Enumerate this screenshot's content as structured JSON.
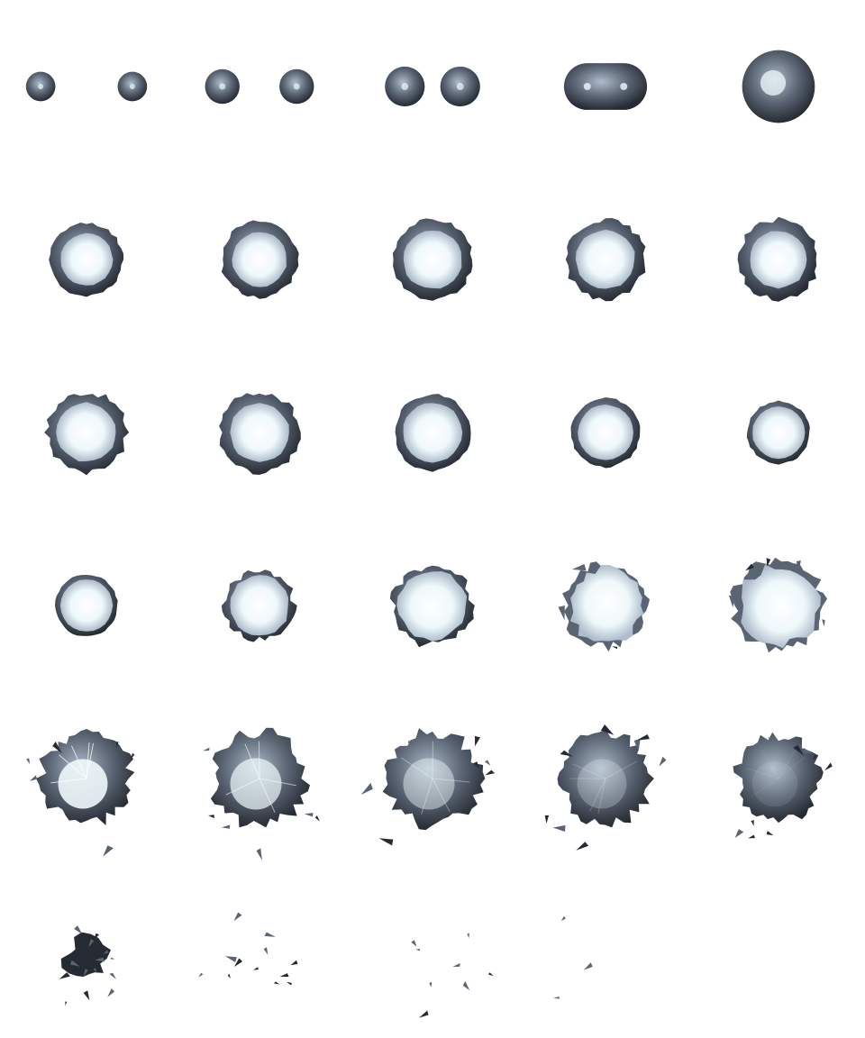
{
  "sprite_sheet": {
    "columns": 5,
    "rows": 6,
    "background": "#ffffff",
    "palette": {
      "metal_dark": "#262b33",
      "metal_mid": "#5a6473",
      "metal_light": "#aebccb",
      "glow": "#eef8fb",
      "core": "#ffffff"
    },
    "frames": [
      {
        "index": 0,
        "kind": "pair",
        "sep": 0.53,
        "r": 0.085
      },
      {
        "index": 1,
        "kind": "pair",
        "sep": 0.43,
        "r": 0.1
      },
      {
        "index": 2,
        "kind": "pair",
        "sep": 0.32,
        "r": 0.115
      },
      {
        "index": 3,
        "kind": "merge",
        "glow": 0.1
      },
      {
        "index": 4,
        "kind": "orb",
        "r": 0.21,
        "glow": 0.35
      },
      {
        "index": 5,
        "kind": "ring",
        "r": 0.21,
        "inner": 0.72,
        "jag": 0.04
      },
      {
        "index": 6,
        "kind": "ring",
        "r": 0.22,
        "inner": 0.72,
        "jag": 0.05
      },
      {
        "index": 7,
        "kind": "ring",
        "r": 0.23,
        "inner": 0.74,
        "jag": 0.05
      },
      {
        "index": 8,
        "kind": "ring",
        "r": 0.23,
        "inner": 0.74,
        "jag": 0.06
      },
      {
        "index": 9,
        "kind": "ring",
        "r": 0.23,
        "inner": 0.72,
        "jag": 0.07
      },
      {
        "index": 10,
        "kind": "ring",
        "r": 0.23,
        "inner": 0.74,
        "jag": 0.08
      },
      {
        "index": 11,
        "kind": "ring",
        "r": 0.23,
        "inner": 0.74,
        "jag": 0.07
      },
      {
        "index": 12,
        "kind": "ring",
        "r": 0.22,
        "inner": 0.78,
        "jag": 0.04
      },
      {
        "index": 13,
        "kind": "ring",
        "r": 0.2,
        "inner": 0.8,
        "jag": 0.03
      },
      {
        "index": 14,
        "kind": "ring",
        "r": 0.18,
        "inner": 0.84,
        "jag": 0.03
      },
      {
        "index": 15,
        "kind": "ring",
        "r": 0.18,
        "inner": 0.84,
        "jag": 0.02
      },
      {
        "index": 16,
        "kind": "thin",
        "r": 0.2,
        "jag": 0.1
      },
      {
        "index": 17,
        "kind": "thin",
        "r": 0.23,
        "jag": 0.11
      },
      {
        "index": 18,
        "kind": "burst",
        "r": 0.24,
        "jag": 0.12,
        "shards": 3
      },
      {
        "index": 19,
        "kind": "burst",
        "r": 0.26,
        "jag": 0.12,
        "shards": 5
      },
      {
        "index": 20,
        "kind": "cloud",
        "r": 0.26,
        "bright": 0.9,
        "shards": 6
      },
      {
        "index": 21,
        "kind": "cloud",
        "r": 0.27,
        "bright": 0.7,
        "shards": 6
      },
      {
        "index": 22,
        "kind": "cloud",
        "r": 0.27,
        "bright": 0.45,
        "shards": 7
      },
      {
        "index": 23,
        "kind": "cloud",
        "r": 0.26,
        "bright": 0.25,
        "shards": 8
      },
      {
        "index": 24,
        "kind": "cloud",
        "r": 0.24,
        "bright": 0.1,
        "shards": 9
      },
      {
        "index": 25,
        "kind": "debris",
        "core": 0.12,
        "shards": 16
      },
      {
        "index": 26,
        "kind": "debris",
        "core": 0.0,
        "shards": 12
      },
      {
        "index": 27,
        "kind": "debris",
        "core": 0.0,
        "shards": 8
      },
      {
        "index": 28,
        "kind": "debris",
        "core": 0.0,
        "shards": 3
      },
      {
        "index": 29,
        "kind": "empty"
      }
    ]
  }
}
